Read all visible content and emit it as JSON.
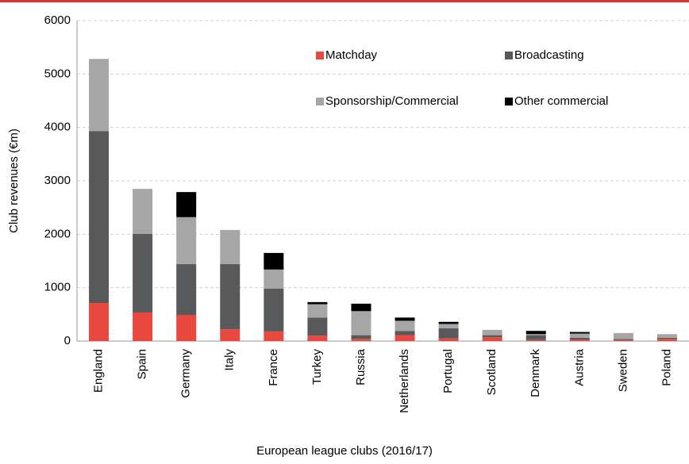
{
  "chart_data": {
    "type": "stacked_bar",
    "x_label": "European league clubs (2016/17)",
    "y_label": "Club revenues (€m)",
    "categories": [
      "England",
      "Spain",
      "Germany",
      "Italy",
      "France",
      "Turkey",
      "Russia",
      "Netherlands",
      "Portugal",
      "Scotland",
      "Denmark",
      "Austria",
      "Sweden",
      "Poland"
    ],
    "series": [
      {
        "name": "Matchday",
        "color": "#e8483d",
        "values": [
          713,
          535,
          490,
          220,
          180,
          100,
          40,
          110,
          50,
          70,
          20,
          30,
          20,
          40
        ]
      },
      {
        "name": "Broadcasting",
        "color": "#58595b",
        "values": [
          3220,
          1470,
          950,
          1220,
          800,
          340,
          70,
          80,
          190,
          40,
          90,
          30,
          20,
          20
        ]
      },
      {
        "name": "Sponsorship/Commercial",
        "color": "#a6a6a6",
        "values": [
          1350,
          845,
          880,
          640,
          360,
          250,
          450,
          190,
          80,
          100,
          20,
          80,
          110,
          70
        ]
      },
      {
        "name": "Other commercial",
        "color": "#000000",
        "values": [
          0,
          0,
          470,
          0,
          310,
          40,
          140,
          60,
          40,
          0,
          60,
          30,
          0,
          0
        ]
      }
    ],
    "ylim": [
      0,
      6000
    ],
    "yticks": [
      0,
      1000,
      2000,
      3000,
      4000,
      5000,
      6000
    ],
    "grid": true
  }
}
